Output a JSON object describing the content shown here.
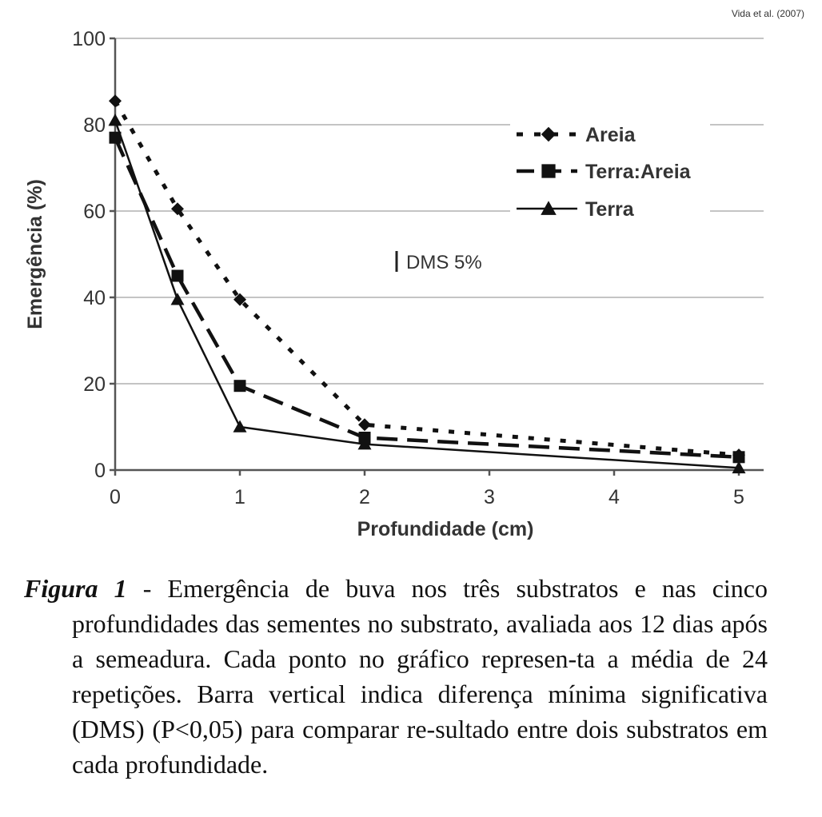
{
  "credit": "Vida et al. (2007)",
  "chart_data": {
    "type": "line",
    "title": "",
    "xlabel": "Profundidade (cm)",
    "ylabel": "Emergência (%)",
    "xlim": [
      0,
      5.2
    ],
    "ylim": [
      0,
      100
    ],
    "xticks": [
      0,
      1,
      2,
      3,
      4,
      5
    ],
    "yticks": [
      0,
      20,
      40,
      60,
      80,
      100
    ],
    "grid": "horizontal",
    "legend_position": "top-right",
    "annotation": "DMS 5%",
    "series": [
      {
        "name": "Areia",
        "marker": "diamond",
        "dash": "dotted",
        "x": [
          0,
          0.5,
          1,
          2,
          5
        ],
        "y": [
          85.5,
          60.5,
          39.5,
          10.5,
          3.5
        ]
      },
      {
        "name": "Terra:Areia",
        "marker": "square",
        "dash": "dashed",
        "x": [
          0,
          0.5,
          1,
          2,
          5
        ],
        "y": [
          77,
          45,
          19.5,
          7.5,
          3
        ]
      },
      {
        "name": "Terra",
        "marker": "triangle",
        "dash": "solid",
        "x": [
          0,
          0.5,
          1,
          2,
          5
        ],
        "y": [
          81,
          39.5,
          10,
          6,
          0.5
        ]
      }
    ]
  },
  "caption": {
    "label": "Figura 1",
    "text": " - Emergência de buva nos três substratos e nas cinco profundidades das sementes no substrato, avaliada aos 12 dias após a semeadura. Cada ponto no gráfico represen-ta a média de 24 repetições. Barra vertical indica diferença mínima significativa (DMS) (P<0,05) para comparar re-sultado entre dois substratos em cada profundidade."
  }
}
